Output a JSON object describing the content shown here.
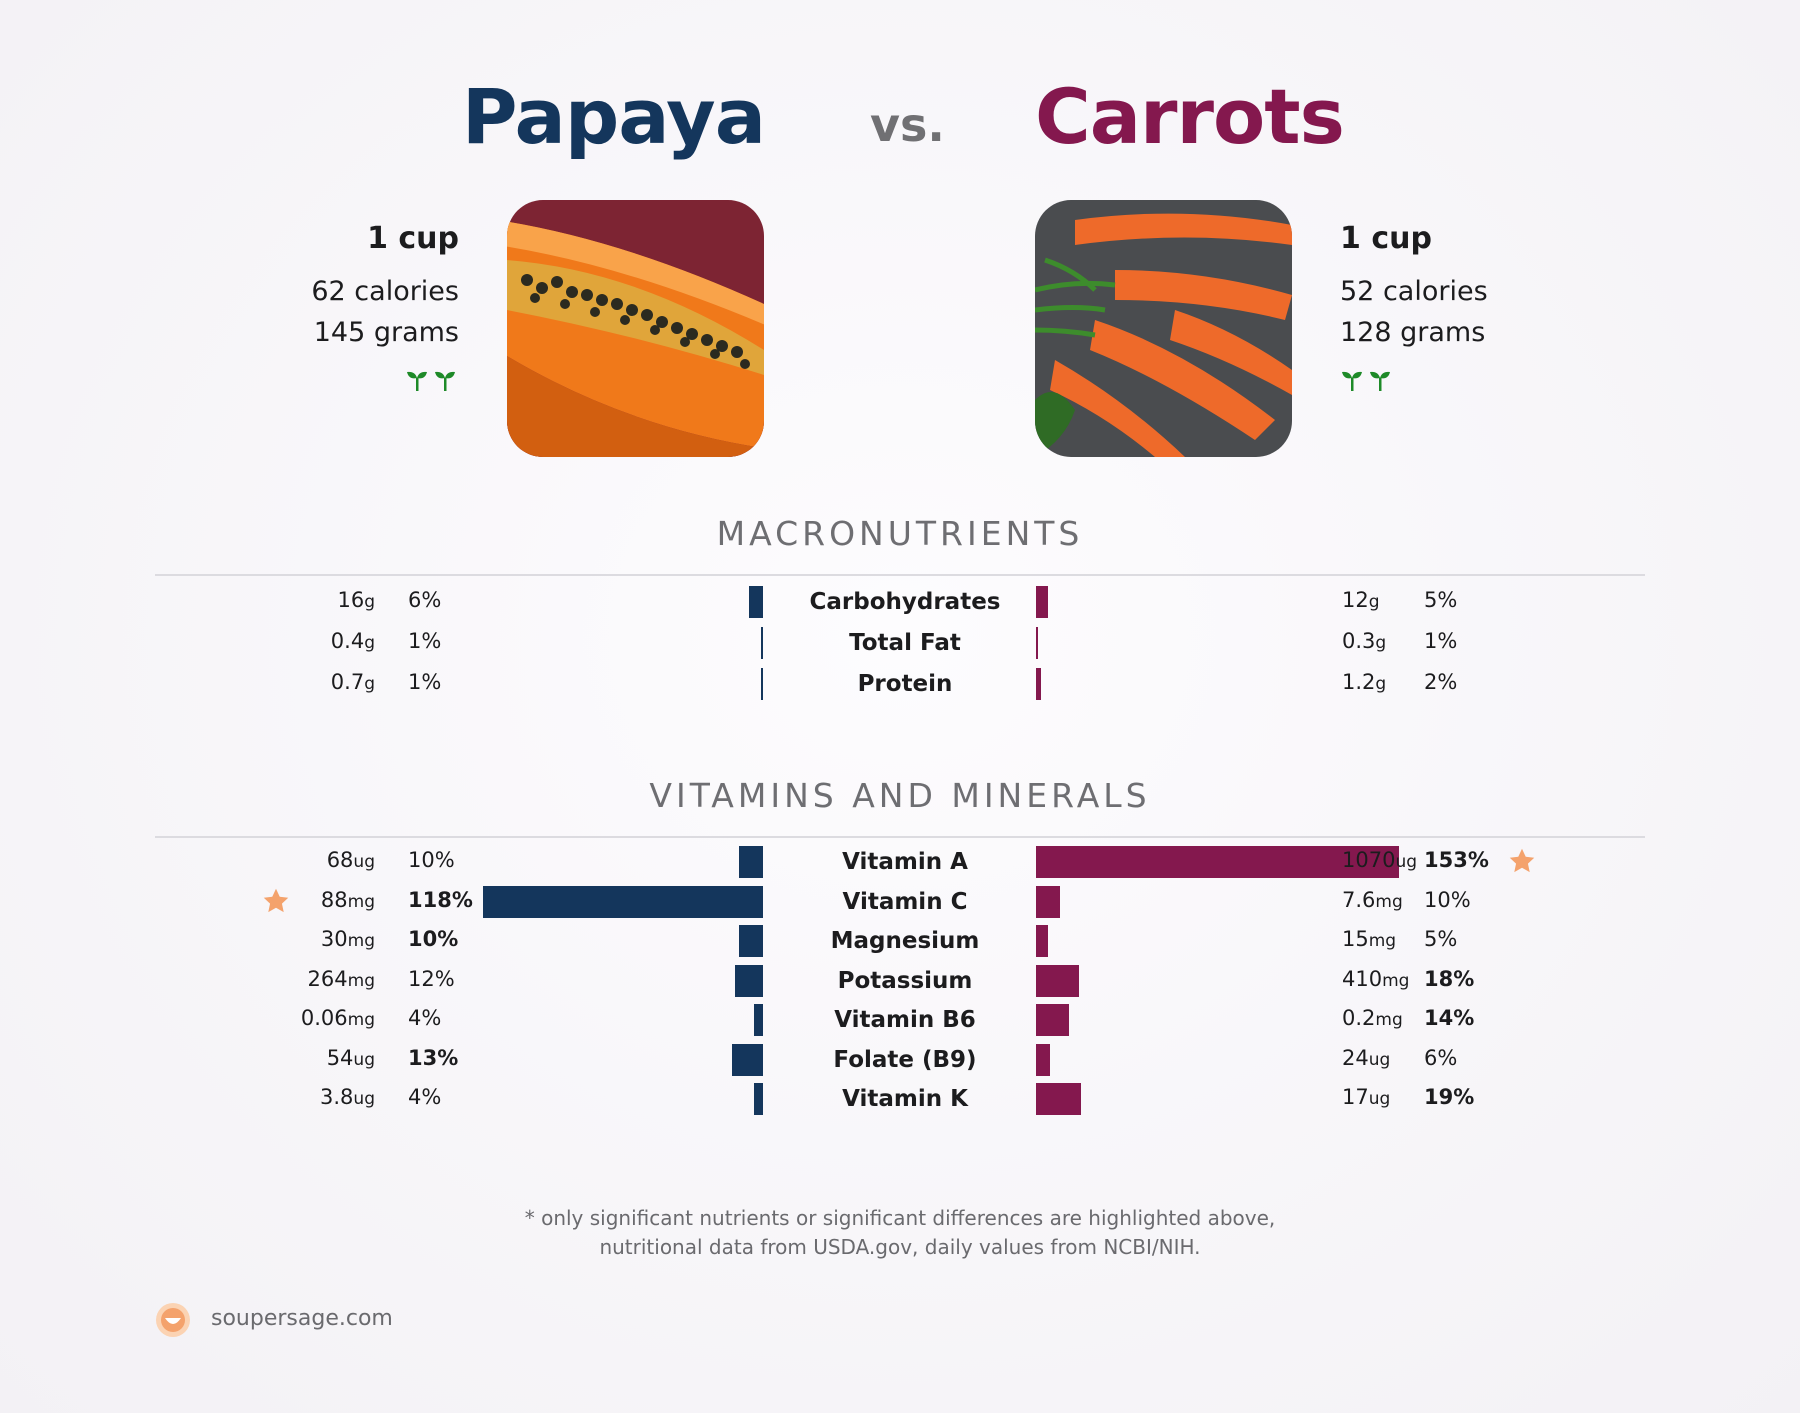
{
  "left": {
    "name": "Papaya",
    "portion": "1 cup",
    "calories": "62 calories",
    "grams": "145 grams",
    "color": "#14365c",
    "image": "papaya-photo"
  },
  "vs_label": "vs.",
  "right": {
    "name": "Carrots",
    "portion": "1 cup",
    "calories": "52 calories",
    "grams": "128 grams",
    "color": "#84184e",
    "image": "carrots-photo"
  },
  "sections": {
    "macros_title": "MACRONUTRIENTS",
    "vitamins_title": "VITAMINS AND MINERALS"
  },
  "footnote": {
    "line1": "* only significant nutrients or significant differences are highlighted above,",
    "line2": "nutritional data from USDA.gov, daily values from NCBI/NIH."
  },
  "brand": {
    "text": "soupersage.com",
    "icon": "soupersage-logo-icon",
    "accent": "#f4a26c"
  },
  "chart_data": [
    {
      "type": "bar",
      "name": "macronutrients",
      "categories": [
        "Carbohydrates",
        "Total Fat",
        "Protein"
      ],
      "left": {
        "amounts": [
          "16",
          "0.4",
          "0.7"
        ],
        "units": [
          "g",
          "g",
          "g"
        ],
        "pct_labels": [
          "6%",
          "1%",
          "1%"
        ],
        "pct": [
          6,
          1,
          1
        ],
        "bold": [
          false,
          false,
          false
        ],
        "star": [
          false,
          false,
          false
        ]
      },
      "right": {
        "amounts": [
          "12",
          "0.3",
          "1.2"
        ],
        "units": [
          "g",
          "g",
          "g"
        ],
        "pct_labels": [
          "5%",
          "1%",
          "2%"
        ],
        "pct": [
          5,
          1,
          2
        ],
        "bold": [
          false,
          false,
          false
        ],
        "star": [
          false,
          false,
          false
        ]
      }
    },
    {
      "type": "bar",
      "name": "vitamins_minerals",
      "categories": [
        "Vitamin A",
        "Vitamin C",
        "Magnesium",
        "Potassium",
        "Vitamin B6",
        "Folate (B9)",
        "Vitamin K"
      ],
      "left": {
        "amounts": [
          "68",
          "88",
          "30",
          "264",
          "0.06",
          "54",
          "3.8"
        ],
        "units": [
          "ug",
          "mg",
          "mg",
          "mg",
          "mg",
          "ug",
          "ug"
        ],
        "pct_labels": [
          "10%",
          "118%",
          "10%",
          "12%",
          "4%",
          "13%",
          "4%"
        ],
        "pct": [
          10,
          118,
          10,
          12,
          4,
          13,
          4
        ],
        "bold": [
          false,
          true,
          true,
          false,
          false,
          true,
          false
        ],
        "star": [
          false,
          true,
          false,
          false,
          false,
          false,
          false
        ]
      },
      "right": {
        "amounts": [
          "1070",
          "7.6",
          "15",
          "410",
          "0.2",
          "24",
          "17"
        ],
        "units": [
          "ug",
          "mg",
          "mg",
          "mg",
          "mg",
          "ug",
          "ug"
        ],
        "pct_labels": [
          "153%",
          "10%",
          "5%",
          "18%",
          "14%",
          "6%",
          "19%"
        ],
        "pct": [
          153,
          10,
          5,
          18,
          14,
          6,
          19
        ],
        "bold": [
          true,
          false,
          false,
          true,
          true,
          false,
          true
        ],
        "star": [
          true,
          false,
          false,
          false,
          false,
          false,
          false
        ]
      }
    }
  ]
}
